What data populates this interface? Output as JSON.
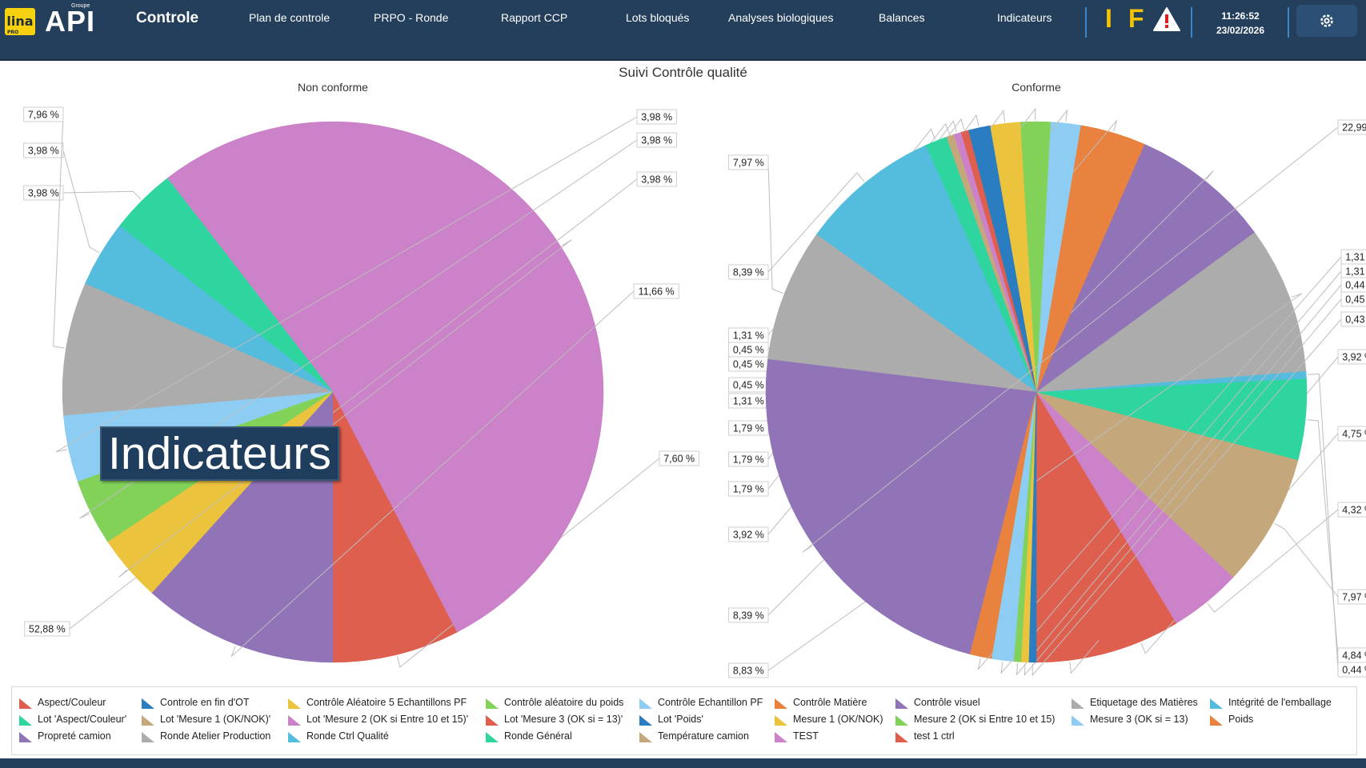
{
  "header": {
    "logo_lina": "lina",
    "logo_lina_sub": "PRO",
    "logo_api": "API",
    "logo_groupe": "Groupe",
    "app_title": "Controle",
    "nav": [
      {
        "label": "Plan de controle"
      },
      {
        "label": "PRPO - Ronde"
      },
      {
        "label": "Rapport CCP"
      },
      {
        "label": "Lots bloqués"
      },
      {
        "label": "Analyses biologiques"
      },
      {
        "label": "Balances"
      },
      {
        "label": "Indicateurs"
      }
    ],
    "status_i": "I",
    "status_f": "F",
    "warning_icon": "warning-triangle-icon",
    "time": "11:26:52",
    "date": "23/02/2026",
    "settings_icon": "gear-icon"
  },
  "overlay_label": "Indicateurs",
  "chart_data": {
    "title": "Suivi Contrôle qualité",
    "charts": [
      {
        "type": "pie",
        "title": "Non conforme",
        "slices": [
          {
            "category": "Lot 'Mesure 3 (OK si = 13)'",
            "value": 7.6,
            "label": "7,60 %",
            "color": "#de5f4d"
          },
          {
            "category": "Lot 'Mesure 2 (OK si Entre 10 et 15)'",
            "value": 52.88,
            "label": "52,88 %",
            "color": "#cc82c8"
          },
          {
            "category": "Lot 'Aspect/Couleur'",
            "value": 3.98,
            "label": "3,98 %",
            "color": "#2fd59f"
          },
          {
            "category": "Ronde Ctrl Qualité",
            "value": 3.98,
            "label": "3,98 %",
            "color": "#54bcdc"
          },
          {
            "category": "Ronde Atelier Production",
            "value": 7.96,
            "label": "7,96 %",
            "color": "#acacac"
          },
          {
            "category": "Contrôle Echantillon PF",
            "value": 3.98,
            "label": "3,98 %",
            "color": "#8ecdf3"
          },
          {
            "category": "Contrôle aléatoire du poids",
            "value": 3.98,
            "label": "3,98 %",
            "color": "#82d25a"
          },
          {
            "category": "Contrôle Aléatoire 5 Echantillons PF",
            "value": 3.98,
            "label": "3,98 %",
            "color": "#ecc33d"
          },
          {
            "category": "Propreté camion",
            "value": 11.66,
            "label": "11,66 %",
            "color": "#9173b8"
          }
        ]
      },
      {
        "type": "pie",
        "title": "Conforme",
        "slices": [
          {
            "category": "Lot 'Mesure 3 (OK si = 13)'",
            "value": 3.92,
            "label": "3,92 %",
            "color": "#de5f4d"
          },
          {
            "category": "test 1 ctrl",
            "value": 4.75,
            "label": "4,75 %",
            "color": "#de5f4d"
          },
          {
            "category": "Lot 'Mesure 2 (OK si Entre 10 et 15)'",
            "value": 4.32,
            "label": "4,32 %",
            "color": "#cc82c8"
          },
          {
            "category": "Lot 'Mesure 1 (OK/NOK)'",
            "value": 7.97,
            "label": "7,97 %",
            "color": "#c5a77c"
          },
          {
            "category": "Lot 'Aspect/Couleur'",
            "value": 4.84,
            "label": "4,84 %",
            "color": "#2fd59f"
          },
          {
            "category": "Ronde Ctrl Qualité",
            "value": 0.44,
            "label": "0,44 %",
            "color": "#54bcdc"
          },
          {
            "category": "Etiquetage des Matières",
            "value": 8.83,
            "label": "8,83 %",
            "color": "#acacac"
          },
          {
            "category": "Contrôle visuel",
            "value": 8.39,
            "label": "8,39 %",
            "color": "#9173b8"
          },
          {
            "category": "Poids",
            "value": 3.92,
            "label": "3,92 %",
            "color": "#e8823e"
          },
          {
            "category": "Mesure 3 (OK si = 13)",
            "value": 1.79,
            "label": "1,79 %",
            "color": "#8ecdf3"
          },
          {
            "category": "Mesure 2 (OK si Entre 10 et 15)",
            "value": 1.79,
            "label": "1,79 %",
            "color": "#82d25a"
          },
          {
            "category": "Mesure 1 (OK/NOK)",
            "value": 1.79,
            "label": "1,79 %",
            "color": "#ecc33d"
          },
          {
            "category": "Lot 'Poids'",
            "value": 1.31,
            "label": "1,31 %",
            "color": "#2a7dc1"
          },
          {
            "category": "Aspect/Couleur",
            "value": 0.45,
            "label": "0,45 %",
            "color": "#de5f4d"
          },
          {
            "category": "TEST",
            "value": 0.45,
            "label": "0,45 %",
            "color": "#cc82c8"
          },
          {
            "category": "Température camion",
            "value": 0.45,
            "label": "0,45 %",
            "color": "#c5a77c"
          },
          {
            "category": "Ronde Général",
            "value": 1.31,
            "label": "1,31 %",
            "color": "#2fd59f"
          },
          {
            "category": "Intégrité de l'emballage",
            "value": 8.39,
            "label": "8,39 %",
            "color": "#54bcdc"
          },
          {
            "category": "Ronde Atelier Production",
            "value": 7.97,
            "label": "7,97 %",
            "color": "#acacac"
          },
          {
            "category": "Propreté camion",
            "value": 22.99,
            "label": "22,99 %",
            "color": "#9173b8"
          },
          {
            "category": "Contrôle Matière",
            "value": 1.31,
            "label": "1,31 %",
            "color": "#e8823e"
          },
          {
            "category": "Contrôle Echantillon PF",
            "value": 1.31,
            "label": "1,31 %",
            "color": "#8ecdf3"
          },
          {
            "category": "Contrôle aléatoire du poids",
            "value": 0.44,
            "label": "0,44 %",
            "color": "#82d25a"
          },
          {
            "category": "Contrôle Aléatoire 5 Echantillons PF",
            "value": 0.45,
            "label": "0,45 %",
            "color": "#ecc33d"
          },
          {
            "category": "Controle en fin d'OT",
            "value": 0.43,
            "label": "0,43 %",
            "color": "#2a7dc1"
          }
        ]
      }
    ],
    "legend": {
      "placement": "bottom",
      "entries": [
        {
          "label": "Aspect/Couleur",
          "color": "#de5f4d"
        },
        {
          "label": "Controle  en fin d'OT",
          "color": "#2a7dc1"
        },
        {
          "label": "Contrôle Aléatoire 5 Echantillons PF",
          "color": "#ecc33d"
        },
        {
          "label": "Contrôle aléatoire du poids",
          "color": "#82d25a"
        },
        {
          "label": "Contrôle Echantillon PF",
          "color": "#8ecdf3"
        },
        {
          "label": "Contrôle Matière",
          "color": "#e8823e"
        },
        {
          "label": "Contrôle visuel",
          "color": "#9173b8"
        },
        {
          "label": "Etiquetage des Matières",
          "color": "#acacac"
        },
        {
          "label": "Intégrité de l'emballage",
          "color": "#54bcdc"
        },
        {
          "label": "Lot 'Aspect/Couleur'",
          "color": "#2fd59f"
        },
        {
          "label": "Lot 'Mesure 1 (OK/NOK)'",
          "color": "#c5a77c"
        },
        {
          "label": "Lot 'Mesure 2 (OK si Entre 10 et 15)'",
          "color": "#cc82c8"
        },
        {
          "label": "Lot 'Mesure 3 (OK si = 13)'",
          "color": "#de5f4d"
        },
        {
          "label": "Lot 'Poids'",
          "color": "#2a7dc1"
        },
        {
          "label": "Mesure 1 (OK/NOK)",
          "color": "#ecc33d"
        },
        {
          "label": "Mesure 2 (OK si Entre 10 et 15)",
          "color": "#82d25a"
        },
        {
          "label": "Mesure 3 (OK si = 13)",
          "color": "#8ecdf3"
        },
        {
          "label": "Poids",
          "color": "#e8823e"
        },
        {
          "label": "Propreté camion",
          "color": "#9173b8"
        },
        {
          "label": "Ronde Atelier Production",
          "color": "#acacac"
        },
        {
          "label": "Ronde Ctrl Qualité",
          "color": "#54bcdc"
        },
        {
          "label": "Ronde Général",
          "color": "#2fd59f"
        },
        {
          "label": "Température camion",
          "color": "#c5a77c"
        },
        {
          "label": "TEST",
          "color": "#cc82c8"
        },
        {
          "label": "test 1 ctrl",
          "color": "#de5f4d"
        }
      ]
    }
  }
}
